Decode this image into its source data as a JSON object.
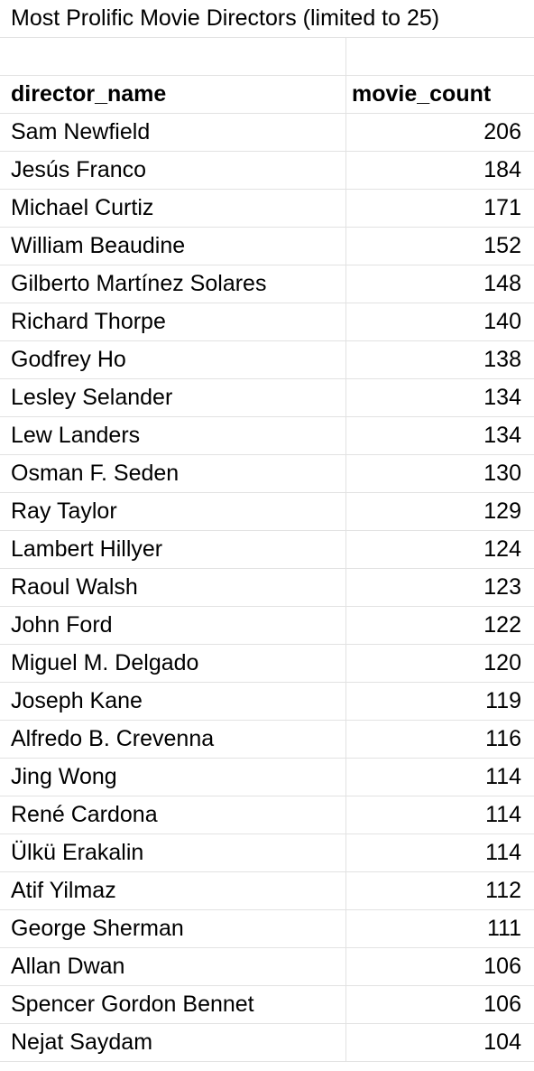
{
  "sheet": {
    "title": "Most Prolific Movie Directors (limited to 25)",
    "headers": {
      "director_name": "director_name",
      "movie_count": "movie_count"
    },
    "rows": [
      {
        "director_name": "Sam Newfield",
        "movie_count": "206"
      },
      {
        "director_name": "Jesús Franco",
        "movie_count": "184"
      },
      {
        "director_name": "Michael Curtiz",
        "movie_count": "171"
      },
      {
        "director_name": "William Beaudine",
        "movie_count": "152"
      },
      {
        "director_name": "Gilberto Martínez Solares",
        "movie_count": "148"
      },
      {
        "director_name": "Richard Thorpe",
        "movie_count": "140"
      },
      {
        "director_name": "Godfrey Ho",
        "movie_count": "138"
      },
      {
        "director_name": "Lesley Selander",
        "movie_count": "134"
      },
      {
        "director_name": "Lew Landers",
        "movie_count": "134"
      },
      {
        "director_name": "Osman F. Seden",
        "movie_count": "130"
      },
      {
        "director_name": "Ray Taylor",
        "movie_count": "129"
      },
      {
        "director_name": "Lambert Hillyer",
        "movie_count": "124"
      },
      {
        "director_name": "Raoul Walsh",
        "movie_count": "123"
      },
      {
        "director_name": "John Ford",
        "movie_count": "122"
      },
      {
        "director_name": "Miguel M. Delgado",
        "movie_count": "120"
      },
      {
        "director_name": "Joseph Kane",
        "movie_count": "119"
      },
      {
        "director_name": "Alfredo B. Crevenna",
        "movie_count": "116"
      },
      {
        "director_name": "Jing Wong",
        "movie_count": "114"
      },
      {
        "director_name": "René Cardona",
        "movie_count": "114"
      },
      {
        "director_name": "Ülkü Erakalin",
        "movie_count": "114"
      },
      {
        "director_name": "Atif Yilmaz",
        "movie_count": "112"
      },
      {
        "director_name": "George Sherman",
        "movie_count": "111"
      },
      {
        "director_name": "Allan Dwan",
        "movie_count": "106"
      },
      {
        "director_name": "Spencer Gordon Bennet",
        "movie_count": "106"
      },
      {
        "director_name": "Nejat Saydam",
        "movie_count": "104"
      }
    ]
  }
}
